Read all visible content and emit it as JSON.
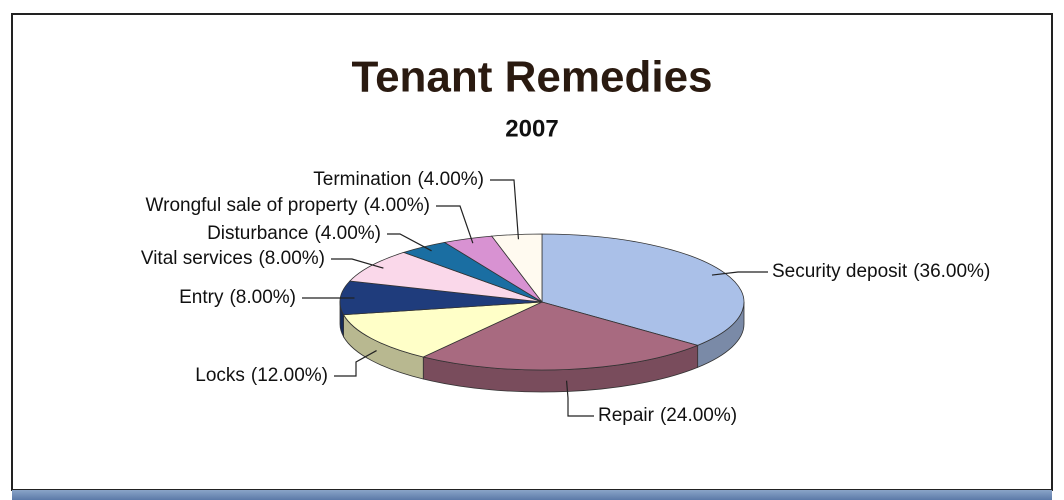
{
  "chart_data": {
    "type": "pie3d",
    "title": "Tenant Remedies",
    "subtitle": "2007",
    "categories": [
      "Security deposit",
      "Repair",
      "Locks",
      "Entry",
      "Vital services",
      "Disturbance",
      "Wrongful sale of property",
      "Termination"
    ],
    "values": [
      36,
      24,
      12,
      8,
      8,
      4,
      4,
      4
    ],
    "value_labels": [
      "(36.00%)",
      "(24.00%)",
      "(12.00%)",
      "(8.00%)",
      "(8.00%)",
      "(4.00%)",
      "(4.00%)",
      "(4.00%)"
    ],
    "colors": [
      "#aac0e8",
      "#a86a80",
      "#ffffc8",
      "#1f3c7c",
      "#fad8ea",
      "#1a6ea2",
      "#d892d2",
      "#fffaf0"
    ]
  }
}
